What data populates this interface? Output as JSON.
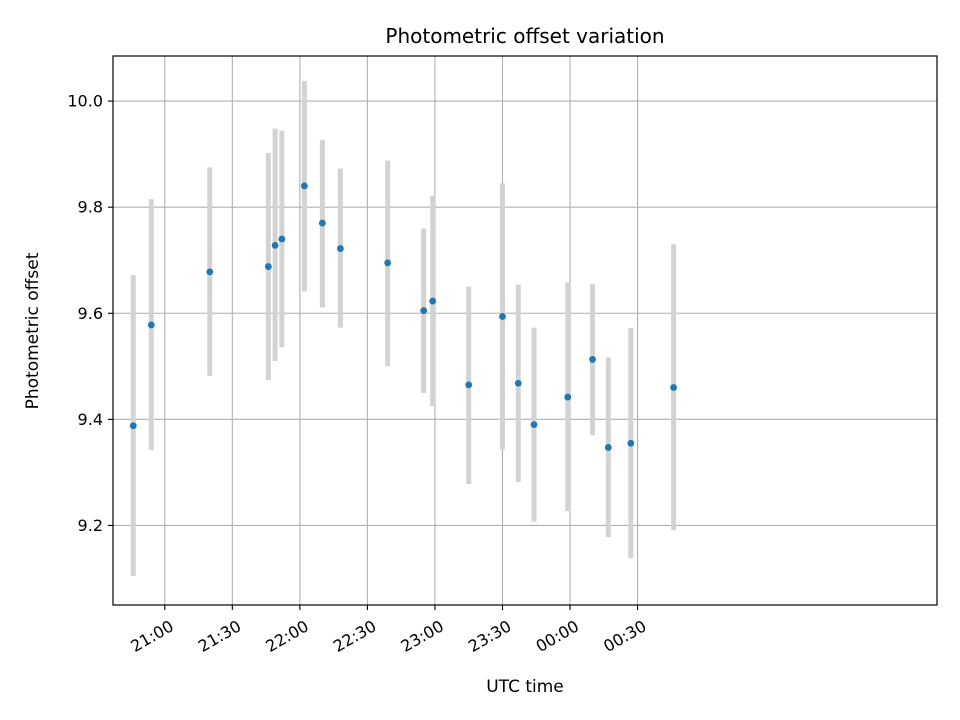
{
  "chart_data": {
    "type": "scatter",
    "title": "Photometric offset variation",
    "xlabel": "UTC time",
    "ylabel": "Photometric offset",
    "x_unit": "UTC time (HH:MM)",
    "xlim": [
      "20:37",
      "02:43"
    ],
    "ylim": [
      9.05,
      10.085
    ],
    "grid": true,
    "x_tick_labels": [
      "21:00",
      "21:30",
      "22:00",
      "22:30",
      "23:00",
      "23:30",
      "00:00",
      "00:30"
    ],
    "y_tick_labels": [
      "9.2",
      "9.4",
      "9.6",
      "9.8",
      "10.0"
    ],
    "y_ticks": [
      9.2,
      9.4,
      9.6,
      9.8,
      10.0
    ],
    "series": [
      {
        "marker_color": "#1f77b4",
        "errorbar_color": "#d3d3d3",
        "points": [
          {
            "x": "20:46",
            "y": 9.388,
            "low": 9.105,
            "high": 9.672
          },
          {
            "x": "20:54",
            "y": 9.578,
            "low": 9.342,
            "high": 9.815
          },
          {
            "x": "21:20",
            "y": 9.678,
            "low": 9.482,
            "high": 9.875
          },
          {
            "x": "21:46",
            "y": 9.688,
            "low": 9.474,
            "high": 9.902
          },
          {
            "x": "21:49",
            "y": 9.728,
            "low": 9.51,
            "high": 9.948
          },
          {
            "x": "21:52",
            "y": 9.74,
            "low": 9.536,
            "high": 9.944
          },
          {
            "x": "22:02",
            "y": 9.84,
            "low": 9.641,
            "high": 10.038
          },
          {
            "x": "22:10",
            "y": 9.77,
            "low": 9.611,
            "high": 9.927
          },
          {
            "x": "22:18",
            "y": 9.722,
            "low": 9.573,
            "high": 9.873
          },
          {
            "x": "22:39",
            "y": 9.695,
            "low": 9.5,
            "high": 9.888
          },
          {
            "x": "22:55",
            "y": 9.605,
            "low": 9.45,
            "high": 9.76
          },
          {
            "x": "22:59",
            "y": 9.623,
            "low": 9.425,
            "high": 9.822
          },
          {
            "x": "23:15",
            "y": 9.465,
            "low": 9.278,
            "high": 9.65
          },
          {
            "x": "23:30",
            "y": 9.594,
            "low": 9.343,
            "high": 9.845
          },
          {
            "x": "23:37",
            "y": 9.468,
            "low": 9.282,
            "high": 9.654
          },
          {
            "x": "23:44",
            "y": 9.39,
            "low": 9.207,
            "high": 9.573
          },
          {
            "x": "23:59",
            "y": 9.442,
            "low": 9.227,
            "high": 9.658
          },
          {
            "x": "00:10",
            "y": 9.513,
            "low": 9.37,
            "high": 9.655
          },
          {
            "x": "00:17",
            "y": 9.347,
            "low": 9.178,
            "high": 9.517
          },
          {
            "x": "00:27",
            "y": 9.355,
            "low": 9.138,
            "high": 9.572
          },
          {
            "x": "00:46",
            "y": 9.46,
            "low": 9.191,
            "high": 9.73
          }
        ]
      }
    ]
  }
}
